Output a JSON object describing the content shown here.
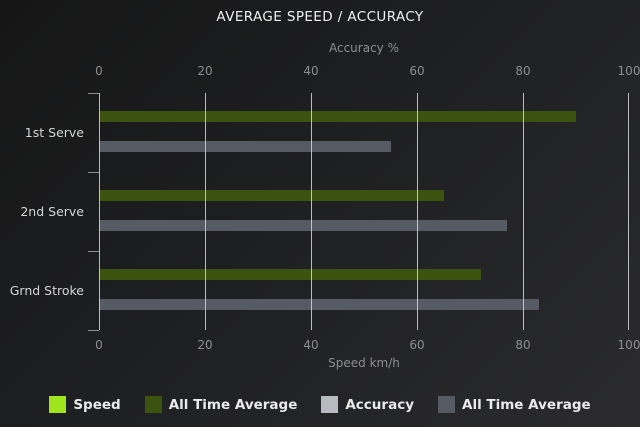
{
  "title": "AVERAGE SPEED / ACCURACY",
  "chart_data": {
    "type": "bar",
    "orientation": "horizontal",
    "title": "AVERAGE SPEED / ACCURACY",
    "categories": [
      "1st Serve",
      "2nd Serve",
      "Grnd Stroke"
    ],
    "series": [
      {
        "name": "Speed",
        "color": "#9ee51e",
        "axis": "bottom",
        "values": [
          null,
          null,
          null
        ]
      },
      {
        "name": "All Time Average",
        "color": "#3a530e",
        "axis": "bottom",
        "values": [
          90,
          65,
          72
        ]
      },
      {
        "name": "Accuracy",
        "color": "#b7bbc0",
        "axis": "top",
        "values": [
          null,
          null,
          null
        ]
      },
      {
        "name": "All Time Average",
        "color": "#565b63",
        "axis": "top",
        "values": [
          55,
          77,
          83
        ]
      }
    ],
    "top_axis": {
      "label": "Accuracy %",
      "ticks": [
        "0",
        "20",
        "40",
        "60",
        "80",
        "100"
      ],
      "range": [
        0,
        100
      ]
    },
    "bottom_axis": {
      "label": "Speed km/h",
      "ticks": [
        "0",
        "20",
        "40",
        "60",
        "80",
        "100"
      ],
      "range": [
        0,
        100
      ]
    },
    "grid": true,
    "legend_position": "bottom"
  },
  "legend": {
    "items": [
      {
        "label": "Speed",
        "color": "#9ee51e"
      },
      {
        "label": "All Time Average",
        "color": "#3a530e"
      },
      {
        "label": "Accuracy",
        "color": "#b7bbc0"
      },
      {
        "label": "All Time Average",
        "color": "#565b63"
      }
    ]
  },
  "colors": {
    "background_start": "#161616",
    "background_end": "#2b2b2d",
    "gridline": "#d6d6da",
    "axis_text": "#8d8d8d",
    "category_text": "#d4d4d4",
    "title_text": "#efefef",
    "legend_text": "#eaeaea"
  }
}
